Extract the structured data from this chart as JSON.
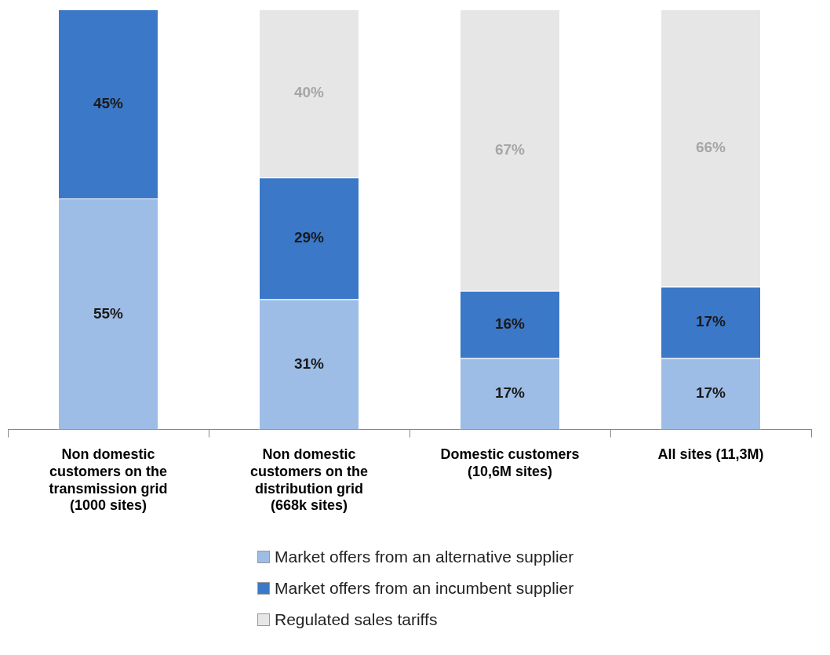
{
  "chart_data": {
    "type": "bar",
    "stacked": true,
    "legend": "bottom",
    "categories": [
      "Non domestic customers on the transmission grid (1000 sites)",
      "Non domestic customers on the distribution grid (668k sites)",
      "Domestic customers (10,6M sites)",
      "All sites (11,3M)"
    ],
    "series": [
      {
        "name": "Market offers from an alternative supplier",
        "color": "#9dbde6",
        "values": [
          55,
          31,
          17,
          17
        ],
        "value_labels": [
          "55%",
          "31%",
          "17%",
          "17%"
        ]
      },
      {
        "name": "Market offers from an incumbent supplier",
        "color": "#3b78c8",
        "values": [
          45,
          29,
          16,
          17
        ],
        "value_labels": [
          "45%",
          "29%",
          "16%",
          "17%"
        ]
      },
      {
        "name": "Regulated sales tariffs",
        "color": "#e6e6e6",
        "values": [
          null,
          40,
          67,
          66
        ],
        "value_labels": [
          null,
          "40%",
          "67%",
          "66%"
        ]
      }
    ]
  }
}
